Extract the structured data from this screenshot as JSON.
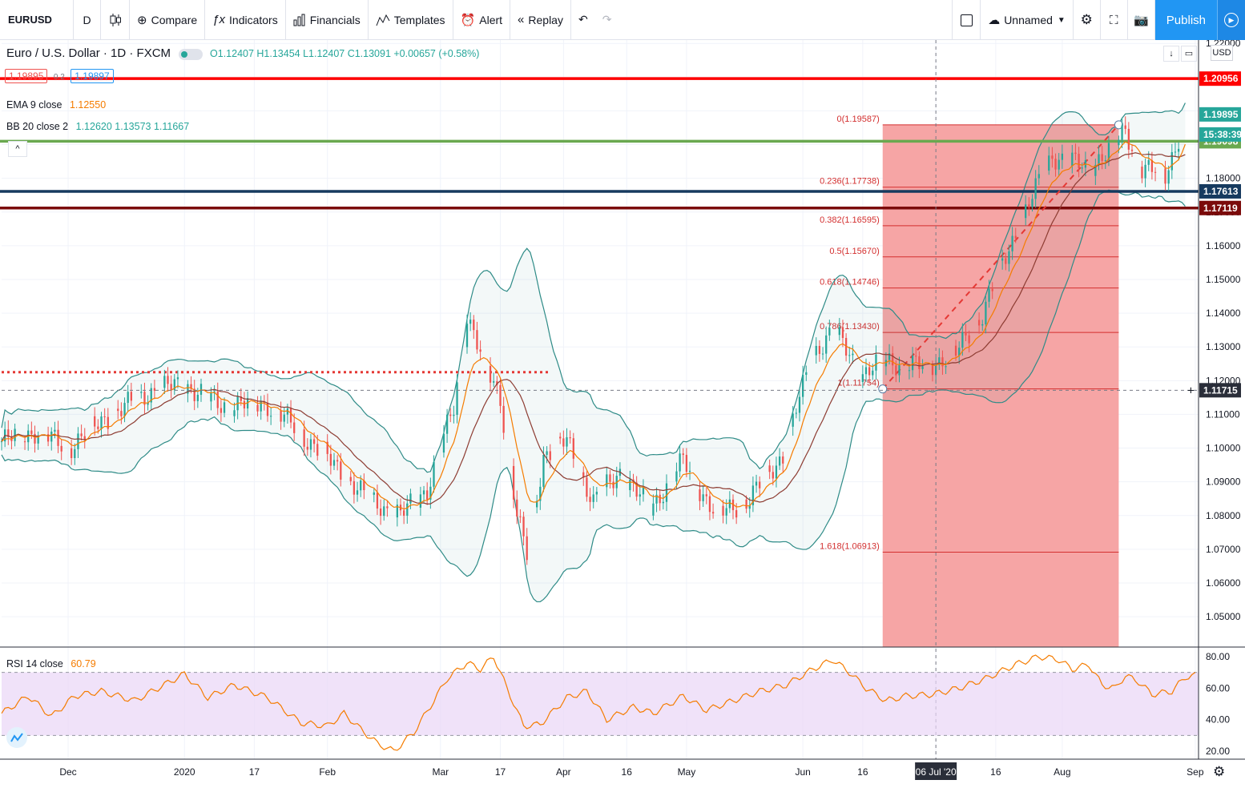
{
  "toolbar": {
    "symbol": "EURUSD",
    "interval": "D",
    "compare": "Compare",
    "indicators": "Indicators",
    "financials": "Financials",
    "templates": "Templates",
    "alert": "Alert",
    "replay": "Replay",
    "layout_name": "Unnamed",
    "publish": "Publish"
  },
  "legend": {
    "title": "Euro / U.S. Dollar · 1D · FXCM",
    "ohlc": "O1.12407 H1.13454 L1.12407 C1.13091 +0.00657 (+0.58%)",
    "bid": "1.19895",
    "spread": "0.2",
    "ask": "1.19897",
    "ema_label": "EMA 9 close",
    "ema_value": "1.12550",
    "bb_label": "BB 20 close 2",
    "bb_values": "1.12620 1.13573 1.11667",
    "rsi_label": "RSI 14 close",
    "rsi_value": "60.79",
    "currency": "USD"
  },
  "colors": {
    "up": "#26a69a",
    "down": "#ef5350",
    "ema": "#f57c00",
    "bb_basis": "#8d3c32",
    "bb_band": "#2e8b87",
    "fib_fill": "#f5a0a0",
    "rsi": "#f57c00",
    "rsi_band": "#e9d5f7"
  },
  "chart_data": {
    "type": "candlestick",
    "symbol": "EURUSD",
    "ylim": [
      1.041,
      1.221
    ],
    "y_ticks": [
      "1.22000",
      "1.21000",
      "1.20000",
      "1.19000",
      "1.18000",
      "1.17000",
      "1.16000",
      "1.15000",
      "1.14000",
      "1.13000",
      "1.12000",
      "1.11000",
      "1.10000",
      "1.09000",
      "1.08000",
      "1.07000",
      "1.06000",
      "1.05000"
    ],
    "y_tick_values": [
      1.22,
      1.21,
      1.2,
      1.19,
      1.18,
      1.17,
      1.16,
      1.15,
      1.14,
      1.13,
      1.12,
      1.11,
      1.1,
      1.09,
      1.08,
      1.07,
      1.06,
      1.05
    ],
    "x_ticks": [
      "Dec",
      "2020",
      "17",
      "Feb",
      "Mar",
      "17",
      "Apr",
      "16",
      "May",
      "Jun",
      "16",
      "06 Jul '20",
      "16",
      "Aug",
      "Sep"
    ],
    "x_tick_day": [
      20,
      55,
      76,
      98,
      132,
      150,
      169,
      188,
      206,
      241,
      259,
      281,
      299,
      319,
      359
    ],
    "price_keypoints": [
      [
        0,
        1.102
      ],
      [
        10,
        1.105
      ],
      [
        20,
        1.1
      ],
      [
        30,
        1.108
      ],
      [
        45,
        1.117
      ],
      [
        55,
        1.119
      ],
      [
        65,
        1.113
      ],
      [
        80,
        1.113
      ],
      [
        95,
        1.1
      ],
      [
        110,
        1.085
      ],
      [
        120,
        1.08
      ],
      [
        128,
        1.088
      ],
      [
        136,
        1.112
      ],
      [
        140,
        1.14
      ],
      [
        145,
        1.125
      ],
      [
        150,
        1.115
      ],
      [
        155,
        1.08
      ],
      [
        158,
        1.068
      ],
      [
        163,
        1.098
      ],
      [
        170,
        1.102
      ],
      [
        178,
        1.084
      ],
      [
        186,
        1.093
      ],
      [
        195,
        1.082
      ],
      [
        205,
        1.096
      ],
      [
        215,
        1.08
      ],
      [
        225,
        1.085
      ],
      [
        235,
        1.098
      ],
      [
        244,
        1.128
      ],
      [
        250,
        1.135
      ],
      [
        259,
        1.122
      ],
      [
        266,
        1.126
      ],
      [
        277,
        1.124
      ],
      [
        287,
        1.128
      ],
      [
        295,
        1.14
      ],
      [
        305,
        1.164
      ],
      [
        316,
        1.187
      ],
      [
        326,
        1.183
      ],
      [
        334,
        1.189
      ],
      [
        338,
        1.194
      ],
      [
        343,
        1.183
      ],
      [
        350,
        1.181
      ],
      [
        356,
        1.198
      ]
    ],
    "fib_levels": [
      {
        "label": "0(1.19587)",
        "value": 1.19587
      },
      {
        "label": "0.236(1.17738)",
        "value": 1.17738
      },
      {
        "label": "0.382(1.16595)",
        "value": 1.16595
      },
      {
        "label": "0.5(1.15670)",
        "value": 1.1567
      },
      {
        "label": "0.618(1.14746)",
        "value": 1.14746
      },
      {
        "label": "0.786(1.13430)",
        "value": 1.1343
      },
      {
        "label": "1(1.11754)",
        "value": 1.11754
      },
      {
        "label": "1.618(1.06913)",
        "value": 1.06913
      }
    ],
    "fib_day_range": [
      265,
      336
    ],
    "horizontal_lines": [
      {
        "value": 1.20956,
        "label": "1.20956",
        "color": "#ff0000"
      },
      {
        "value": 1.19098,
        "label": "1.19098",
        "color": "#6aa84f"
      },
      {
        "value": 1.17613,
        "label": "1.17613",
        "color": "#163a5f"
      },
      {
        "value": 1.17119,
        "label": "1.17119",
        "color": "#7b0a0a"
      }
    ],
    "dotted_level": {
      "value": 1.1225,
      "day_range": [
        0,
        165
      ]
    },
    "price_labels": [
      {
        "value": 1.19895,
        "label": "1.19895",
        "color": "#26a69a"
      },
      {
        "value": 1.193,
        "label": "15:38:39",
        "color": "#26a69a"
      },
      {
        "value": 1.11715,
        "label": "1.11715",
        "color": "#2a2e39"
      }
    ],
    "crosshair": {
      "day": 281,
      "value": 1.11715
    },
    "rsi": {
      "ylim": [
        15,
        85
      ],
      "ticks": [
        "80.00",
        "60.00",
        "40.00",
        "20.00"
      ],
      "tick_values": [
        80,
        60,
        40,
        20
      ],
      "band": [
        30,
        70
      ],
      "keypoints": [
        [
          0,
          44
        ],
        [
          8,
          55
        ],
        [
          15,
          42
        ],
        [
          22,
          55
        ],
        [
          30,
          58
        ],
        [
          40,
          52
        ],
        [
          55,
          69
        ],
        [
          62,
          54
        ],
        [
          70,
          62
        ],
        [
          80,
          54
        ],
        [
          90,
          38
        ],
        [
          98,
          36
        ],
        [
          103,
          44
        ],
        [
          108,
          34
        ],
        [
          113,
          25
        ],
        [
          118,
          20
        ],
        [
          124,
          32
        ],
        [
          130,
          52
        ],
        [
          134,
          66
        ],
        [
          140,
          76
        ],
        [
          144,
          72
        ],
        [
          148,
          80
        ],
        [
          152,
          60
        ],
        [
          157,
          36
        ],
        [
          162,
          37
        ],
        [
          170,
          54
        ],
        [
          176,
          58
        ],
        [
          182,
          40
        ],
        [
          190,
          48
        ],
        [
          196,
          44
        ],
        [
          205,
          55
        ],
        [
          212,
          46
        ],
        [
          220,
          52
        ],
        [
          228,
          58
        ],
        [
          236,
          62
        ],
        [
          244,
          72
        ],
        [
          250,
          78
        ],
        [
          255,
          70
        ],
        [
          260,
          60
        ],
        [
          266,
          52
        ],
        [
          272,
          55
        ],
        [
          280,
          56
        ],
        [
          288,
          60
        ],
        [
          296,
          66
        ],
        [
          305,
          75
        ],
        [
          312,
          80
        ],
        [
          318,
          78
        ],
        [
          322,
          72
        ],
        [
          327,
          75
        ],
        [
          331,
          62
        ],
        [
          335,
          60
        ],
        [
          338,
          68
        ],
        [
          342,
          64
        ],
        [
          346,
          56
        ],
        [
          352,
          58
        ],
        [
          356,
          67
        ],
        [
          359,
          68
        ]
      ]
    }
  }
}
